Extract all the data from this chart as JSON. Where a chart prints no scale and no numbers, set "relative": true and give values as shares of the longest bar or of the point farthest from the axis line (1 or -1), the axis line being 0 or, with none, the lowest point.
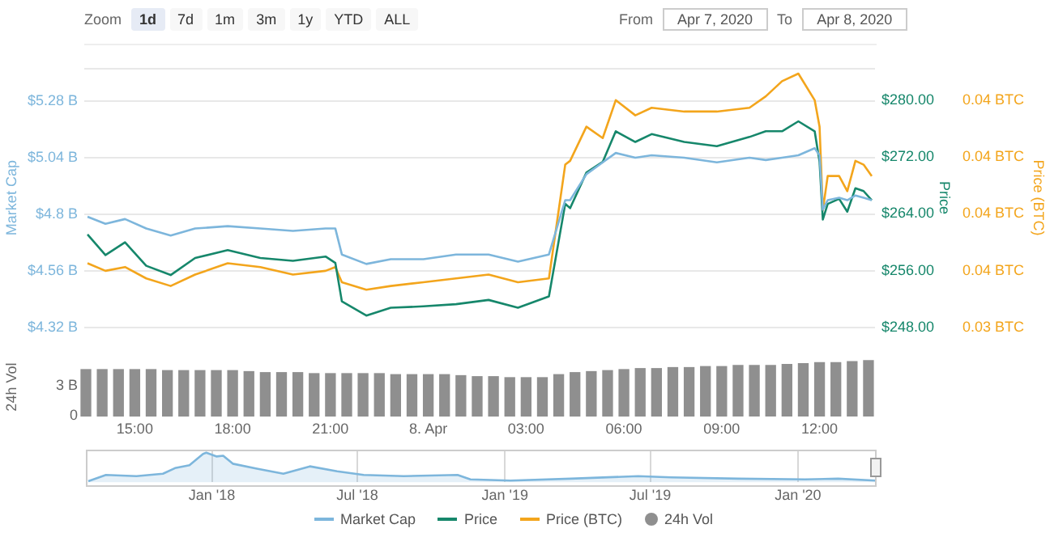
{
  "chart_data": [
    {
      "type": "line",
      "annotations": [
        "Zoom",
        "1d",
        "7d",
        "1m",
        "3m",
        "1y",
        "YTD",
        "ALL",
        "From",
        "Apr 7, 2020",
        "To",
        "Apr 8, 2020"
      ],
      "x": [
        "2020-04-07T13:33",
        "2020-04-07T14:06",
        "2020-04-07T14:42",
        "2020-04-07T15:21",
        "2020-04-07T16:06",
        "2020-04-07T16:51",
        "2020-04-07T17:51",
        "2020-04-07T18:51",
        "2020-04-07T19:51",
        "2020-04-07T20:51",
        "2020-04-07T21:09",
        "2020-04-07T21:21",
        "2020-04-07T22:06",
        "2020-04-07T22:51",
        "2020-04-07T23:51",
        "2020-04-08T00:51",
        "2020-04-08T01:51",
        "2020-04-08T02:45",
        "2020-04-08T03:42",
        "2020-04-08T04:12",
        "2020-04-08T04:21",
        "2020-04-08T04:51",
        "2020-04-08T05:21",
        "2020-04-08T05:45",
        "2020-04-08T06:21",
        "2020-04-08T06:51",
        "2020-04-08T07:51",
        "2020-04-08T08:51",
        "2020-04-08T09:51",
        "2020-04-08T10:21",
        "2020-04-08T10:51",
        "2020-04-08T11:21",
        "2020-04-08T11:51",
        "2020-04-08T12:00",
        "2020-04-08T12:06",
        "2020-04-08T12:15",
        "2020-04-08T12:36",
        "2020-04-08T12:51",
        "2020-04-08T13:06",
        "2020-04-08T13:21",
        "2020-04-08T13:36"
      ],
      "xlim": [
        "2020-04-07T13:27",
        "2020-04-08T13:42"
      ],
      "tick_labels": "y",
      "ylabel": "Market Cap",
      "y2label": "Price",
      "y3label": "Price (BTC)",
      "ylim": [
        4.32,
        5.42
      ],
      "yticks": [
        {
          "value": 4.32,
          "label": "$4.32 B"
        },
        {
          "value": 4.56,
          "label": "$4.56 B"
        },
        {
          "value": 4.8,
          "label": "$4.8 B"
        },
        {
          "value": 5.04,
          "label": "$5.04 B"
        },
        {
          "value": 5.28,
          "label": "$5.28 B"
        }
      ],
      "y2lim": [
        248,
        284.5
      ],
      "y2ticks": [
        {
          "value": 248,
          "label": "$248.00"
        },
        {
          "value": 256,
          "label": "$256.00"
        },
        {
          "value": 264,
          "label": "$264.00"
        },
        {
          "value": 272,
          "label": "$272.00"
        },
        {
          "value": 280,
          "label": "$280.00"
        }
      ],
      "y3lim": [
        0.034,
        0.04085
      ],
      "y3ticks": [
        {
          "value": 0.034,
          "label": "0.03 BTC"
        },
        {
          "value": 0.0355,
          "label": "0.04 BTC"
        },
        {
          "value": 0.037,
          "label": "0.04 BTC"
        },
        {
          "value": 0.0385,
          "label": "0.04 BTC"
        },
        {
          "value": 0.04,
          "label": "0.04 BTC"
        }
      ],
      "grid": "y",
      "legend": "bottom",
      "series": [
        {
          "name": "Market Cap",
          "color": "#7db6dc",
          "values": [
            4.79,
            4.76,
            4.78,
            4.74,
            4.71,
            4.74,
            4.75,
            4.74,
            4.73,
            4.74,
            4.74,
            4.63,
            4.59,
            4.61,
            4.61,
            4.63,
            4.63,
            4.6,
            4.63,
            4.86,
            4.86,
            4.97,
            5.02,
            5.06,
            5.04,
            5.05,
            5.04,
            5.02,
            5.04,
            5.03,
            5.04,
            5.05,
            5.08,
            5.05,
            4.82,
            4.86,
            4.87,
            4.86,
            4.88,
            4.87,
            4.86
          ]
        },
        {
          "name": "Price",
          "color": "#16876b",
          "axis": "y2",
          "values": [
            261.1,
            258.2,
            260.0,
            256.7,
            255.4,
            257.8,
            258.9,
            257.8,
            257.4,
            258.0,
            257.1,
            251.7,
            249.7,
            250.8,
            251.0,
            251.3,
            251.9,
            250.8,
            252.4,
            265.4,
            264.8,
            269.8,
            271.3,
            275.6,
            274.1,
            275.2,
            274.1,
            273.5,
            274.8,
            275.6,
            275.6,
            277.0,
            275.6,
            271.3,
            263.2,
            265.4,
            266.1,
            264.3,
            267.6,
            267.2,
            265.9
          ]
        },
        {
          "name": "Price (BTC)",
          "color": "#f3a51c",
          "axis": "y3",
          "values": [
            0.0357,
            0.0355,
            0.0356,
            0.0353,
            0.0351,
            0.0354,
            0.0357,
            0.0356,
            0.0354,
            0.0355,
            0.0356,
            0.0352,
            0.035,
            0.0351,
            0.0352,
            0.0353,
            0.0354,
            0.0352,
            0.0353,
            0.0383,
            0.0384,
            0.0393,
            0.039,
            0.04,
            0.0396,
            0.0398,
            0.0397,
            0.0397,
            0.0398,
            0.0401,
            0.0405,
            0.0407,
            0.04,
            0.0393,
            0.0371,
            0.038,
            0.038,
            0.0376,
            0.0384,
            0.0383,
            0.038
          ]
        }
      ]
    },
    {
      "type": "bar",
      "ylabel": "24h Vol",
      "legend": "bottom",
      "x": [
        "2020-04-07T13:30",
        "2020-04-07T14:00",
        "2020-04-07T14:30",
        "2020-04-07T15:00",
        "2020-04-07T15:30",
        "2020-04-07T16:00",
        "2020-04-07T16:30",
        "2020-04-07T17:00",
        "2020-04-07T17:30",
        "2020-04-07T18:00",
        "2020-04-07T18:30",
        "2020-04-07T19:00",
        "2020-04-07T19:30",
        "2020-04-07T20:00",
        "2020-04-07T20:30",
        "2020-04-07T21:00",
        "2020-04-07T21:30",
        "2020-04-07T22:00",
        "2020-04-07T22:30",
        "2020-04-07T23:00",
        "2020-04-07T23:30",
        "2020-04-08T00:00",
        "2020-04-08T00:30",
        "2020-04-08T01:00",
        "2020-04-08T01:30",
        "2020-04-08T02:00",
        "2020-04-08T02:30",
        "2020-04-08T03:00",
        "2020-04-08T03:30",
        "2020-04-08T04:00",
        "2020-04-08T04:30",
        "2020-04-08T05:00",
        "2020-04-08T05:30",
        "2020-04-08T06:00",
        "2020-04-08T06:30",
        "2020-04-08T07:00",
        "2020-04-08T07:30",
        "2020-04-08T08:00",
        "2020-04-08T08:30",
        "2020-04-08T09:00",
        "2020-04-08T09:30",
        "2020-04-08T10:00",
        "2020-04-08T10:30",
        "2020-04-08T11:00",
        "2020-04-08T11:30",
        "2020-04-08T12:00",
        "2020-04-08T12:30",
        "2020-04-08T13:00",
        "2020-04-08T13:30"
      ],
      "xlim": [
        "2020-04-07T13:27",
        "2020-04-08T13:42"
      ],
      "xticks": [
        {
          "value": "2020-04-07T15:00",
          "label": "15:00"
        },
        {
          "value": "2020-04-07T18:00",
          "label": "18:00"
        },
        {
          "value": "2020-04-07T21:00",
          "label": "21:00"
        },
        {
          "value": "2020-04-08T00:00",
          "label": "8. Apr"
        },
        {
          "value": "2020-04-08T03:00",
          "label": "03:00"
        },
        {
          "value": "2020-04-08T06:00",
          "label": "06:00"
        },
        {
          "value": "2020-04-08T09:00",
          "label": "09:00"
        },
        {
          "value": "2020-04-08T12:00",
          "label": "12:00"
        }
      ],
      "ylim": [
        0,
        5.74
      ],
      "yticks": [
        0,
        {
          "value": 3,
          "label": "3 B"
        }
      ],
      "series": [
        {
          "name": "24h Vol",
          "color": "#8f8f8f",
          "values": [
            4.6,
            4.6,
            4.6,
            4.6,
            4.6,
            4.5,
            4.5,
            4.5,
            4.5,
            4.5,
            4.4,
            4.3,
            4.3,
            4.3,
            4.2,
            4.2,
            4.2,
            4.2,
            4.2,
            4.1,
            4.1,
            4.1,
            4.1,
            4.0,
            3.9,
            3.9,
            3.8,
            3.8,
            3.8,
            4.1,
            4.3,
            4.4,
            4.5,
            4.6,
            4.7,
            4.7,
            4.8,
            4.8,
            4.9,
            4.9,
            5.0,
            5.0,
            5.0,
            5.1,
            5.2,
            5.3,
            5.3,
            5.4,
            5.5
          ]
        }
      ]
    },
    {
      "type": "area",
      "relative": true,
      "color": "#7db6dc",
      "grid": "x",
      "x": [
        "2017-07-31",
        "2017-08-22",
        "2017-09-29",
        "2017-11-01",
        "2017-11-16",
        "2017-12-04",
        "2017-12-21",
        "2017-12-25",
        "2018-01-07",
        "2018-01-15",
        "2018-01-27",
        "2018-02-26",
        "2018-03-31",
        "2018-05-03",
        "2018-06-06",
        "2018-07-09",
        "2018-08-28",
        "2018-11-03",
        "2018-11-19",
        "2019-01-08",
        "2019-03-24",
        "2019-06-16",
        "2019-07-27",
        "2019-10-19",
        "2020-01-10",
        "2020-02-20",
        "2020-04-07"
      ],
      "values": [
        0.04,
        0.25,
        0.21,
        0.29,
        0.48,
        0.58,
        0.96,
        1,
        0.875,
        0.9,
        0.63,
        0.46,
        0.29,
        0.54,
        0.375,
        0.25,
        0.21,
        0.25,
        0.1,
        0.06,
        0.125,
        0.21,
        0.17,
        0.125,
        0.1,
        0.125,
        0.06
      ],
      "xlim": [
        "2017-07-28",
        "2020-04-08"
      ],
      "xticks": [
        {
          "value": "2018-01-01",
          "label": "Jan '18"
        },
        {
          "value": "2018-07-01",
          "label": "Jul '18"
        },
        {
          "value": "2019-01-01",
          "label": "Jan '19"
        },
        {
          "value": "2019-07-01",
          "label": "Jul '19"
        },
        {
          "value": "2020-01-01",
          "label": "Jan '20"
        }
      ]
    }
  ]
}
